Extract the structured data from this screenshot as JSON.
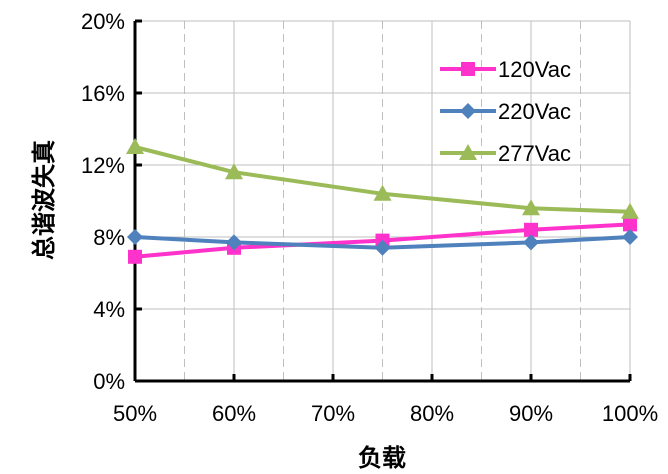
{
  "chart_data": {
    "type": "line",
    "title": "",
    "xlabel": "负载",
    "ylabel": "总谐波失真",
    "x": [
      50,
      60,
      75,
      90,
      100
    ],
    "xlim": [
      50,
      100
    ],
    "x_ticks": [
      50,
      60,
      70,
      80,
      90,
      100
    ],
    "x_tick_labels": [
      "50%",
      "60%",
      "70%",
      "80%",
      "90%",
      "100%"
    ],
    "ylim": [
      0,
      20
    ],
    "y_ticks": [
      0,
      4,
      8,
      12,
      16,
      20
    ],
    "y_tick_labels": [
      "0%",
      "4%",
      "8%",
      "12%",
      "16%",
      "20%"
    ],
    "grid": true,
    "legend_position": "top-right",
    "series": [
      {
        "name": "120Vac",
        "color": "#ff33cc",
        "marker": "square",
        "values": [
          6.9,
          7.4,
          7.8,
          8.4,
          8.7
        ]
      },
      {
        "name": "220Vac",
        "color": "#4f81bd",
        "marker": "diamond",
        "values": [
          8.0,
          7.7,
          7.4,
          7.7,
          8.0
        ]
      },
      {
        "name": "277Vac",
        "color": "#9bbb59",
        "marker": "triangle",
        "values": [
          13.0,
          11.6,
          10.4,
          9.6,
          9.4
        ]
      }
    ]
  }
}
